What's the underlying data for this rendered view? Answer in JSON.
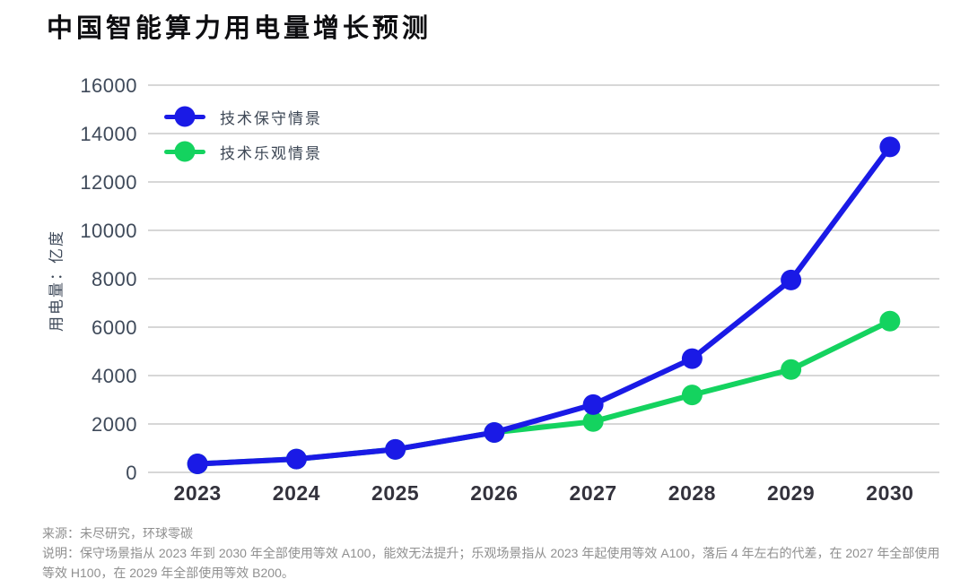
{
  "title": "中国智能算力用电量增长预测",
  "colors": {
    "conservative_blue": "#1a1ae6",
    "optimistic_green": "#14d35f",
    "gridline": "#cacaca",
    "y_tick_text": "#3f4a5a",
    "x_tick_text": "#33323c",
    "title_text": "#0e0e11",
    "footer_text": "#8f8f8f"
  },
  "chart_data": {
    "type": "line",
    "categories": [
      "2023",
      "2024",
      "2025",
      "2026",
      "2027",
      "2028",
      "2029",
      "2030"
    ],
    "series": [
      {
        "name": "技术保守情景",
        "color": "#1a1ae6",
        "values": [
          350,
          550,
          950,
          1650,
          2800,
          4700,
          7950,
          13450
        ]
      },
      {
        "name": "技术乐观情景",
        "color": "#14d35f",
        "values": [
          350,
          550,
          950,
          1650,
          2100,
          3200,
          4250,
          6250
        ]
      }
    ],
    "title": "中国智能算力用电量增长预测",
    "xlabel": "",
    "ylabel": "用电量：亿度",
    "ylim": [
      0,
      16000
    ],
    "ytick_step": 2000,
    "grid": "horizontal-only",
    "legend_position": "top-left-inside",
    "marker": "circle",
    "marker_diameter_px": 23
  },
  "footer": {
    "source": "来源：未尽研究，环球零碳",
    "note": "说明：保守场景指从 2023 年到 2030 年全部使用等效 A100，能效无法提升；乐观场景指从 2023 年起使用等效 A100，落后 4 年左右的代差，在 2027 年全部使用等效 H100，在 2029 年全部使用等效 B200。"
  }
}
